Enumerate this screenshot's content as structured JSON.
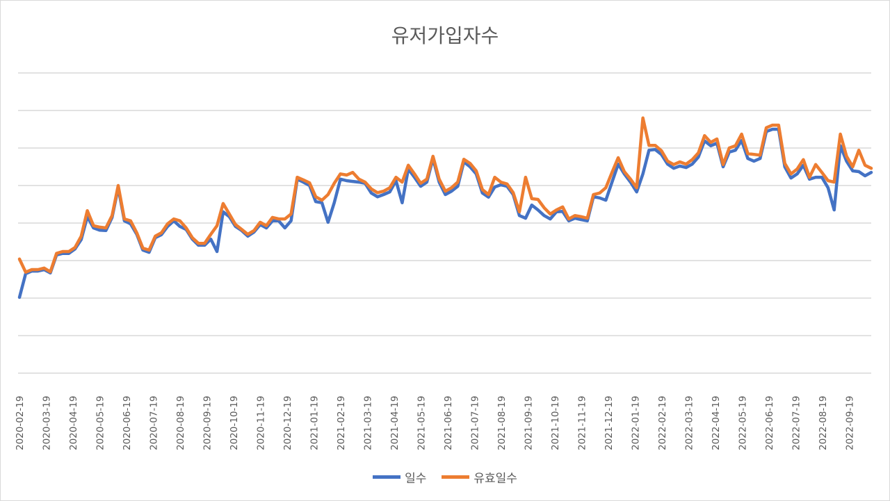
{
  "chart_data": {
    "type": "line",
    "title": "유저가입자수",
    "xlabel": "",
    "ylabel": "",
    "y_tick_labels_shown": false,
    "grid": true,
    "ylim": [
      0,
      8
    ],
    "legend_position": "bottom",
    "x_tick_labels": [
      "2020-02-19",
      "2020-03-19",
      "2020-04-19",
      "2020-05-19",
      "2020-06-19",
      "2020-07-19",
      "2020-08-19",
      "2020-09-19",
      "2020-10-19",
      "2020-11-19",
      "2020-12-19",
      "2021-01-19",
      "2021-02-19",
      "2021-03-19",
      "2021-04-19",
      "2021-05-19",
      "2021-06-19",
      "2021-07-19",
      "2021-08-19",
      "2021-09-19",
      "2021-10-19",
      "2021-11-19",
      "2021-12-19",
      "2022-01-19",
      "2022-02-19",
      "2022-03-19",
      "2022-04-19",
      "2022-05-19",
      "2022-06-19",
      "2022-07-19",
      "2022-08-19",
      "2022-09-19"
    ],
    "series": [
      {
        "name": "일수",
        "color": "#4472c4",
        "values": [
          2.02,
          2.65,
          2.72,
          2.72,
          2.76,
          2.67,
          3.15,
          3.19,
          3.19,
          3.31,
          3.56,
          4.17,
          3.87,
          3.81,
          3.8,
          4.15,
          4.94,
          4.06,
          3.98,
          3.7,
          3.28,
          3.22,
          3.61,
          3.69,
          3.91,
          4.06,
          3.91,
          3.83,
          3.57,
          3.41,
          3.41,
          3.57,
          3.24,
          4.3,
          4.17,
          3.91,
          3.8,
          3.65,
          3.76,
          3.96,
          3.87,
          4.06,
          4.06,
          3.87,
          4.06,
          5.17,
          5.09,
          5.0,
          4.57,
          4.54,
          4.02,
          4.54,
          5.17,
          5.13,
          5.11,
          5.09,
          5.06,
          4.8,
          4.7,
          4.76,
          4.83,
          5.13,
          4.54,
          5.44,
          5.22,
          4.98,
          5.09,
          5.72,
          5.09,
          4.76,
          4.85,
          4.98,
          5.63,
          5.5,
          5.31,
          4.8,
          4.69,
          4.96,
          5.02,
          4.98,
          4.76,
          4.2,
          4.13,
          4.48,
          4.35,
          4.2,
          4.11,
          4.3,
          4.31,
          4.06,
          4.13,
          4.09,
          4.06,
          4.7,
          4.67,
          4.61,
          5.09,
          5.57,
          5.31,
          5.09,
          4.83,
          5.31,
          5.94,
          5.96,
          5.83,
          5.57,
          5.46,
          5.52,
          5.48,
          5.57,
          5.76,
          6.19,
          6.06,
          6.13,
          5.5,
          5.89,
          5.94,
          6.2,
          5.72,
          5.65,
          5.72,
          6.44,
          6.5,
          6.5,
          5.5,
          5.2,
          5.31,
          5.54,
          5.17,
          5.22,
          5.22,
          4.94,
          4.35,
          6.06,
          5.65,
          5.39,
          5.37,
          5.26,
          5.35
        ]
      },
      {
        "name": "유효일수",
        "color": "#ed7d31",
        "values": [
          3.04,
          2.69,
          2.76,
          2.76,
          2.8,
          2.7,
          3.19,
          3.24,
          3.24,
          3.35,
          3.65,
          4.33,
          3.93,
          3.89,
          3.87,
          4.2,
          5.0,
          4.11,
          4.06,
          3.74,
          3.33,
          3.28,
          3.65,
          3.74,
          3.98,
          4.11,
          4.06,
          3.87,
          3.61,
          3.46,
          3.46,
          3.7,
          3.93,
          4.52,
          4.24,
          3.96,
          3.83,
          3.7,
          3.8,
          4.02,
          3.93,
          4.15,
          4.11,
          4.11,
          4.24,
          5.22,
          5.15,
          5.07,
          4.7,
          4.61,
          4.76,
          5.06,
          5.31,
          5.28,
          5.35,
          5.17,
          5.09,
          4.91,
          4.81,
          4.85,
          4.94,
          5.22,
          5.09,
          5.54,
          5.31,
          5.06,
          5.17,
          5.78,
          5.17,
          4.85,
          4.94,
          5.09,
          5.7,
          5.59,
          5.39,
          4.89,
          4.76,
          5.22,
          5.09,
          5.04,
          4.81,
          4.3,
          5.22,
          4.65,
          4.63,
          4.41,
          4.24,
          4.35,
          4.43,
          4.11,
          4.2,
          4.17,
          4.13,
          4.76,
          4.8,
          4.94,
          5.35,
          5.74,
          5.37,
          5.17,
          4.94,
          6.8,
          6.07,
          6.07,
          5.93,
          5.65,
          5.56,
          5.63,
          5.57,
          5.69,
          5.87,
          6.33,
          6.15,
          6.24,
          5.56,
          6.0,
          6.06,
          6.37,
          5.85,
          5.83,
          5.81,
          6.54,
          6.61,
          6.61,
          5.59,
          5.31,
          5.44,
          5.69,
          5.22,
          5.56,
          5.35,
          5.13,
          5.09,
          6.37,
          5.78,
          5.5,
          5.94,
          5.54,
          5.46
        ]
      }
    ]
  }
}
